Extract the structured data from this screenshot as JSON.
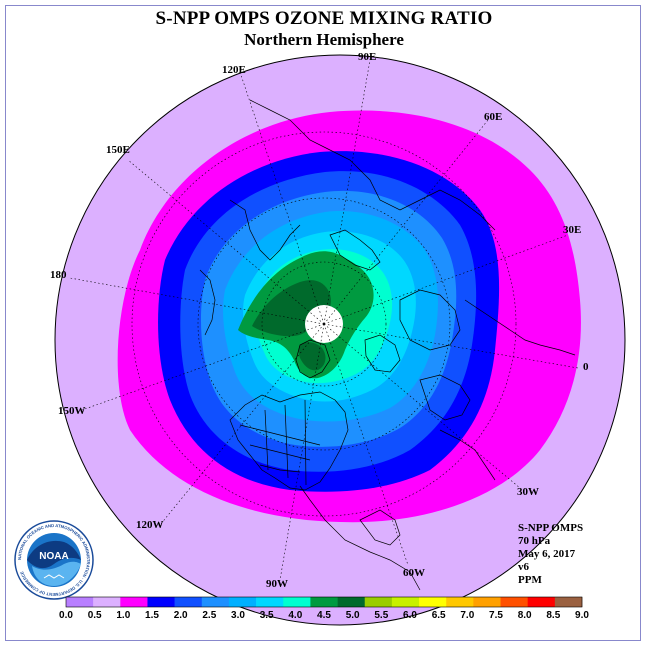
{
  "title": "S-NPP OMPS OZONE MIXING RATIO",
  "subtitle": "Northern Hemisphere",
  "map": {
    "projection": "north polar stereographic",
    "longitude_labels": [
      {
        "text": "90E",
        "lon": 90
      },
      {
        "text": "60E",
        "lon": 60
      },
      {
        "text": "30E",
        "lon": 30
      },
      {
        "text": "0",
        "lon": 0
      },
      {
        "text": "30W",
        "lon": -30
      },
      {
        "text": "60W",
        "lon": -60
      },
      {
        "text": "90W",
        "lon": -90
      },
      {
        "text": "120W",
        "lon": -120
      },
      {
        "text": "150W",
        "lon": -150
      },
      {
        "text": "180",
        "lon": 180
      },
      {
        "text": "150E",
        "lon": 150
      },
      {
        "text": "120E",
        "lon": 120
      }
    ],
    "missing_data_region": "pole (white)"
  },
  "info": {
    "instrument": "S-NPP OMPS",
    "pressure": "70 hPa",
    "date": "May 6, 2017",
    "version": "v6",
    "units": "PPM"
  },
  "colorbar": {
    "ticks": [
      "0.0",
      "0.5",
      "1.0",
      "1.5",
      "2.0",
      "2.5",
      "3.0",
      "3.5",
      "4.0",
      "4.5",
      "5.0",
      "5.5",
      "6.0",
      "6.5",
      "7.0",
      "7.5",
      "8.0",
      "8.5",
      "9.0"
    ],
    "colors": [
      "#b87fff",
      "#dcb0ff",
      "#ff00ff",
      "#0000ff",
      "#1050ff",
      "#1e90ff",
      "#00b0ff",
      "#00d8ff",
      "#00ffd0",
      "#009a40",
      "#006a2c",
      "#9acd00",
      "#c8f000",
      "#ffff00",
      "#ffc800",
      "#ffa000",
      "#ff5000",
      "#ff0000",
      "#9a6040"
    ]
  },
  "logo": {
    "text": "NOAA",
    "ring_text": "NATIONAL OCEANIC AND ATMOSPHERIC ADMINISTRATION · U.S. DEPARTMENT OF COMMERCE"
  }
}
